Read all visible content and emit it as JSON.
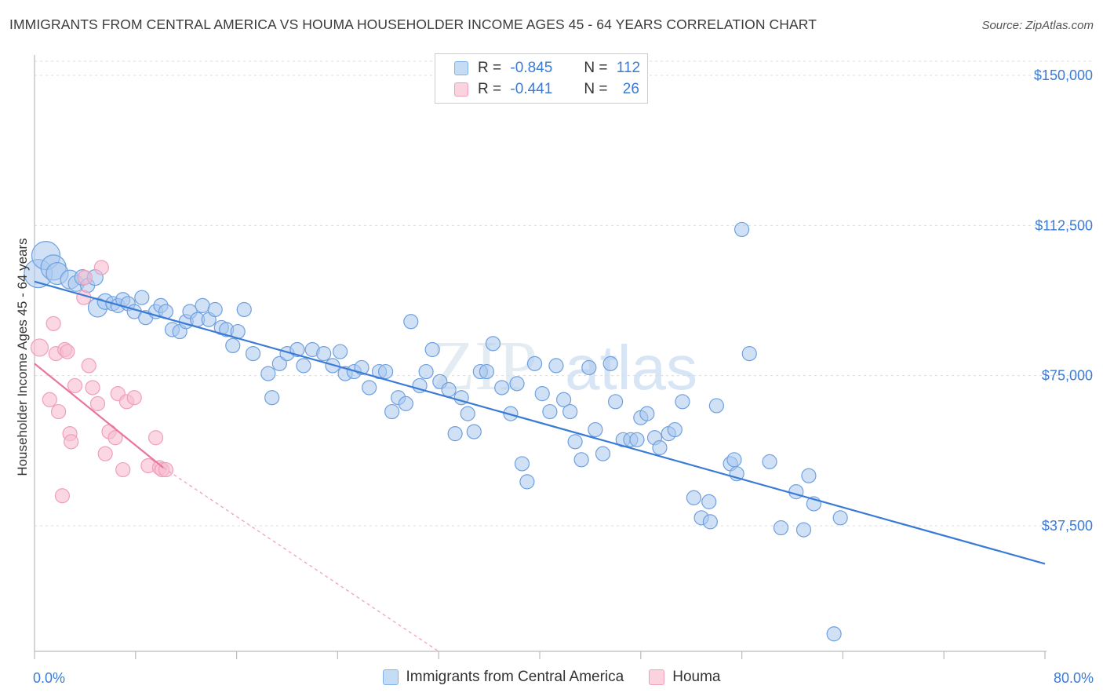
{
  "title": "IMMIGRANTS FROM CENTRAL AMERICA VS HOUMA HOUSEHOLDER INCOME AGES 45 - 64 YEARS CORRELATION CHART",
  "source": "Source: ZipAtlas.com",
  "watermark": {
    "zip": "ZIP",
    "atlas": "atlas"
  },
  "legend": {
    "rows": [
      {
        "r_label": "R =",
        "r_value": "-0.845",
        "n_label": "N =",
        "n_value": "112",
        "color": "#7fb2ea",
        "fill": "#c5dcf5"
      },
      {
        "r_label": "R =",
        "r_value": "-0.441",
        "n_label": "N =",
        "n_value": "26",
        "color": "#f0a0b8",
        "fill": "#fbd3df"
      }
    ]
  },
  "chart_data": {
    "type": "scatter",
    "ylabel": "Householder Income Ages 45 - 64 years",
    "xlim": [
      0,
      80
    ],
    "ylim": [
      0,
      157500
    ],
    "x_tick_labels": [
      "0.0%",
      "80.0%"
    ],
    "y_ticks": [
      37500,
      75000,
      112500,
      150000
    ],
    "y_tick_labels": [
      "$37,500",
      "$75,000",
      "$112,500",
      "$150,000"
    ],
    "grid": "horizontal dashed",
    "series": [
      {
        "name": "Immigrants from Central America",
        "color": "#3a7bd5",
        "fill": "#a9c8ef",
        "trend": {
          "x": [
            0,
            80
          ],
          "y": [
            98500,
            28000
          ],
          "style": "solid"
        },
        "points": [
          [
            0.3,
            100500,
            18
          ],
          [
            0.9,
            105000,
            18
          ],
          [
            1.5,
            102000,
            16
          ],
          [
            1.8,
            100500,
            14
          ],
          [
            2.8,
            99000,
            12
          ],
          [
            3.3,
            98000,
            10
          ],
          [
            3.8,
            99500,
            10
          ],
          [
            4.2,
            97500,
            9
          ],
          [
            4.8,
            99500,
            10
          ],
          [
            5.0,
            92000,
            12
          ],
          [
            5.6,
            93500,
            10
          ],
          [
            6.2,
            93000,
            9
          ],
          [
            6.6,
            92500,
            9
          ],
          [
            7.0,
            94000,
            9
          ],
          [
            7.4,
            93000,
            9
          ],
          [
            7.9,
            91000,
            9
          ],
          [
            8.5,
            94500,
            9
          ],
          [
            8.8,
            89500,
            9
          ],
          [
            9.6,
            91000,
            9
          ],
          [
            10.0,
            92500,
            9
          ],
          [
            10.4,
            91000,
            9
          ],
          [
            10.9,
            86500,
            9
          ],
          [
            11.5,
            86000,
            9
          ],
          [
            12.0,
            88500,
            9
          ],
          [
            12.3,
            91000,
            9
          ],
          [
            12.9,
            89000,
            9
          ],
          [
            13.3,
            92500,
            9
          ],
          [
            13.8,
            89000,
            9
          ],
          [
            14.3,
            91500,
            9
          ],
          [
            14.8,
            87000,
            9
          ],
          [
            15.2,
            86500,
            9
          ],
          [
            15.7,
            82500,
            9
          ],
          [
            16.1,
            86000,
            9
          ],
          [
            16.6,
            91500,
            9
          ],
          [
            17.3,
            80500,
            9
          ],
          [
            18.5,
            75500,
            9
          ],
          [
            18.8,
            69500,
            9
          ],
          [
            19.4,
            78000,
            9
          ],
          [
            20.0,
            80500,
            9
          ],
          [
            20.8,
            81500,
            9
          ],
          [
            21.3,
            77500,
            9
          ],
          [
            22.0,
            81500,
            9
          ],
          [
            22.9,
            80500,
            9
          ],
          [
            23.6,
            77500,
            9
          ],
          [
            24.2,
            81000,
            9
          ],
          [
            24.6,
            75500,
            9
          ],
          [
            25.3,
            76000,
            9
          ],
          [
            25.9,
            77000,
            9
          ],
          [
            26.5,
            72000,
            9
          ],
          [
            27.3,
            76000,
            9
          ],
          [
            27.8,
            76000,
            9
          ],
          [
            28.3,
            66000,
            9
          ],
          [
            28.8,
            69500,
            9
          ],
          [
            29.4,
            68000,
            9
          ],
          [
            29.8,
            88500,
            9
          ],
          [
            30.5,
            72500,
            9
          ],
          [
            31.0,
            76000,
            9
          ],
          [
            31.5,
            81500,
            9
          ],
          [
            32.1,
            73500,
            9
          ],
          [
            32.8,
            71500,
            9
          ],
          [
            33.3,
            60500,
            9
          ],
          [
            33.8,
            69500,
            9
          ],
          [
            34.3,
            65500,
            9
          ],
          [
            34.8,
            61000,
            9
          ],
          [
            35.3,
            76000,
            9
          ],
          [
            35.8,
            76000,
            9
          ],
          [
            36.3,
            83000,
            9
          ],
          [
            37.0,
            72000,
            9
          ],
          [
            37.7,
            65500,
            9
          ],
          [
            38.2,
            73000,
            9
          ],
          [
            38.6,
            53000,
            9
          ],
          [
            39.0,
            48500,
            9
          ],
          [
            39.6,
            78000,
            9
          ],
          [
            40.2,
            70500,
            9
          ],
          [
            40.8,
            66000,
            9
          ],
          [
            41.3,
            77500,
            9
          ],
          [
            41.9,
            69000,
            9
          ],
          [
            42.4,
            66000,
            9
          ],
          [
            42.8,
            58500,
            9
          ],
          [
            43.3,
            54000,
            9
          ],
          [
            43.9,
            77000,
            9
          ],
          [
            44.4,
            61500,
            9
          ],
          [
            45.0,
            55500,
            9
          ],
          [
            45.6,
            78000,
            9
          ],
          [
            46.0,
            68500,
            9
          ],
          [
            46.6,
            59000,
            9
          ],
          [
            47.2,
            59000,
            9
          ],
          [
            47.7,
            59000,
            9
          ],
          [
            48.0,
            64500,
            9
          ],
          [
            48.5,
            65500,
            9
          ],
          [
            49.1,
            59500,
            9
          ],
          [
            49.5,
            57000,
            9
          ],
          [
            50.2,
            60500,
            9
          ],
          [
            50.7,
            61500,
            9
          ],
          [
            51.3,
            68500,
            9
          ],
          [
            52.2,
            44500,
            9
          ],
          [
            52.8,
            39500,
            9
          ],
          [
            53.4,
            43500,
            9
          ],
          [
            53.5,
            38500,
            9
          ],
          [
            54.0,
            67500,
            9
          ],
          [
            55.1,
            53000,
            9
          ],
          [
            55.4,
            54000,
            9
          ],
          [
            55.6,
            50500,
            9
          ],
          [
            56.0,
            111500,
            9
          ],
          [
            56.6,
            80500,
            9
          ],
          [
            58.2,
            53500,
            9
          ],
          [
            59.1,
            37000,
            9
          ],
          [
            60.3,
            46000,
            9
          ],
          [
            60.9,
            36500,
            9
          ],
          [
            61.3,
            50000,
            9
          ],
          [
            61.7,
            43000,
            9
          ],
          [
            63.8,
            39500,
            9
          ],
          [
            63.3,
            10500,
            9
          ]
        ]
      },
      {
        "name": "Houma",
        "color": "#e8779a",
        "fill": "#f7bcd0",
        "trend": {
          "x": [
            0,
            10.2
          ],
          "y": [
            78000,
            52000
          ],
          "style": "solid",
          "ext_x": [
            10.2,
            32
          ],
          "ext_y": [
            52000,
            -4000
          ]
        },
        "points": [
          [
            0.4,
            82000,
            11
          ],
          [
            1.2,
            69000,
            9
          ],
          [
            1.5,
            88000,
            9
          ],
          [
            1.7,
            80500,
            9
          ],
          [
            1.9,
            66000,
            9
          ],
          [
            2.2,
            45000,
            9
          ],
          [
            2.4,
            81500,
            9
          ],
          [
            2.6,
            81000,
            9
          ],
          [
            2.8,
            60500,
            9
          ],
          [
            2.9,
            58500,
            9
          ],
          [
            3.2,
            72500,
            9
          ],
          [
            3.9,
            94500,
            9
          ],
          [
            4.0,
            99500,
            9
          ],
          [
            4.3,
            77500,
            9
          ],
          [
            4.6,
            72000,
            9
          ],
          [
            5.0,
            68000,
            9
          ],
          [
            5.3,
            102000,
            9
          ],
          [
            5.6,
            55500,
            9
          ],
          [
            5.9,
            61000,
            9
          ],
          [
            6.4,
            59500,
            9
          ],
          [
            6.6,
            70500,
            9
          ],
          [
            7.0,
            51500,
            9
          ],
          [
            7.3,
            68500,
            9
          ],
          [
            7.9,
            69500,
            9
          ],
          [
            9.0,
            52500,
            9
          ],
          [
            9.6,
            59500,
            9
          ],
          [
            9.9,
            52000,
            9
          ],
          [
            10.1,
            51500,
            9
          ],
          [
            10.4,
            51500,
            9
          ]
        ]
      }
    ]
  }
}
